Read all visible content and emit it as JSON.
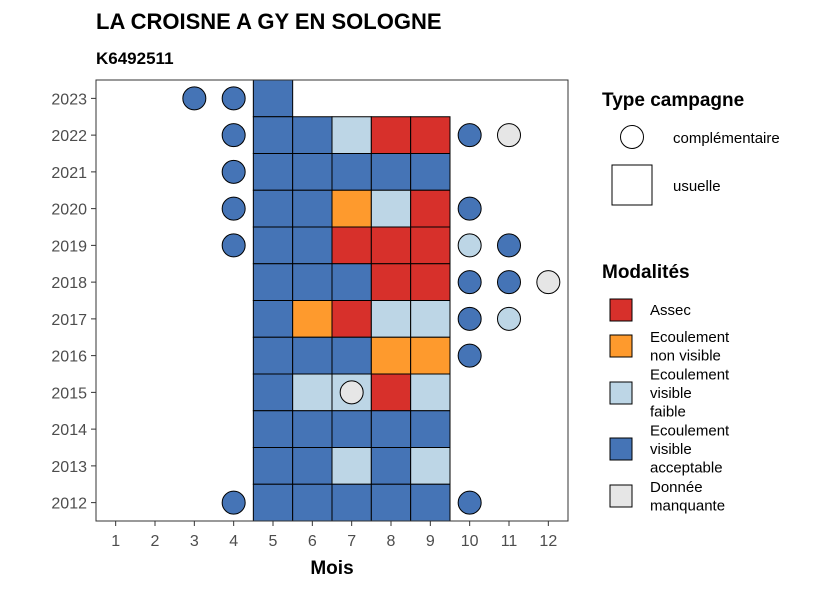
{
  "chart_data": {
    "type": "heatmap",
    "title": "LA CROISNE A GY EN SOLOGNE",
    "subtitle": "K6492511",
    "xlabel": "Mois",
    "ylabel": "",
    "x_ticks": [
      "1",
      "2",
      "3",
      "4",
      "5",
      "6",
      "7",
      "8",
      "9",
      "10",
      "11",
      "12"
    ],
    "y_ticks": [
      "2012",
      "2013",
      "2014",
      "2015",
      "2016",
      "2017",
      "2018",
      "2019",
      "2020",
      "2021",
      "2022",
      "2023"
    ],
    "xlim": [
      0.5,
      12.5
    ],
    "ylim": [
      2011.5,
      2023.5
    ],
    "grid": false,
    "colors": {
      "Assec": "#d7302b",
      "Ecoulement non visible": "#fe9a2d",
      "Ecoulement visible faible": "#bdd6e6",
      "Ecoulement visible acceptable": "#4574b6",
      "Donnée manquante": "#e6e6e6"
    },
    "usuelle": [
      {
        "year": 2023,
        "month": 5,
        "modalite": "Ecoulement visible acceptable"
      },
      {
        "year": 2022,
        "month": 5,
        "modalite": "Ecoulement visible acceptable"
      },
      {
        "year": 2022,
        "month": 6,
        "modalite": "Ecoulement visible acceptable"
      },
      {
        "year": 2022,
        "month": 7,
        "modalite": "Ecoulement visible faible"
      },
      {
        "year": 2022,
        "month": 8,
        "modalite": "Assec"
      },
      {
        "year": 2022,
        "month": 9,
        "modalite": "Assec"
      },
      {
        "year": 2021,
        "month": 5,
        "modalite": "Ecoulement visible acceptable"
      },
      {
        "year": 2021,
        "month": 6,
        "modalite": "Ecoulement visible acceptable"
      },
      {
        "year": 2021,
        "month": 7,
        "modalite": "Ecoulement visible acceptable"
      },
      {
        "year": 2021,
        "month": 8,
        "modalite": "Ecoulement visible acceptable"
      },
      {
        "year": 2021,
        "month": 9,
        "modalite": "Ecoulement visible acceptable"
      },
      {
        "year": 2020,
        "month": 5,
        "modalite": "Ecoulement visible acceptable"
      },
      {
        "year": 2020,
        "month": 6,
        "modalite": "Ecoulement visible acceptable"
      },
      {
        "year": 2020,
        "month": 7,
        "modalite": "Ecoulement non visible"
      },
      {
        "year": 2020,
        "month": 8,
        "modalite": "Ecoulement visible faible"
      },
      {
        "year": 2020,
        "month": 9,
        "modalite": "Assec"
      },
      {
        "year": 2019,
        "month": 5,
        "modalite": "Ecoulement visible acceptable"
      },
      {
        "year": 2019,
        "month": 6,
        "modalite": "Ecoulement visible acceptable"
      },
      {
        "year": 2019,
        "month": 7,
        "modalite": "Assec"
      },
      {
        "year": 2019,
        "month": 8,
        "modalite": "Assec"
      },
      {
        "year": 2019,
        "month": 9,
        "modalite": "Assec"
      },
      {
        "year": 2018,
        "month": 5,
        "modalite": "Ecoulement visible acceptable"
      },
      {
        "year": 2018,
        "month": 6,
        "modalite": "Ecoulement visible acceptable"
      },
      {
        "year": 2018,
        "month": 7,
        "modalite": "Ecoulement visible acceptable"
      },
      {
        "year": 2018,
        "month": 8,
        "modalite": "Assec"
      },
      {
        "year": 2018,
        "month": 9,
        "modalite": "Assec"
      },
      {
        "year": 2017,
        "month": 5,
        "modalite": "Ecoulement visible acceptable"
      },
      {
        "year": 2017,
        "month": 6,
        "modalite": "Ecoulement non visible"
      },
      {
        "year": 2017,
        "month": 7,
        "modalite": "Assec"
      },
      {
        "year": 2017,
        "month": 8,
        "modalite": "Ecoulement visible faible"
      },
      {
        "year": 2017,
        "month": 9,
        "modalite": "Ecoulement visible faible"
      },
      {
        "year": 2016,
        "month": 5,
        "modalite": "Ecoulement visible acceptable"
      },
      {
        "year": 2016,
        "month": 6,
        "modalite": "Ecoulement visible acceptable"
      },
      {
        "year": 2016,
        "month": 7,
        "modalite": "Ecoulement visible acceptable"
      },
      {
        "year": 2016,
        "month": 8,
        "modalite": "Ecoulement non visible"
      },
      {
        "year": 2016,
        "month": 9,
        "modalite": "Ecoulement non visible"
      },
      {
        "year": 2015,
        "month": 5,
        "modalite": "Ecoulement visible acceptable"
      },
      {
        "year": 2015,
        "month": 6,
        "modalite": "Ecoulement visible faible"
      },
      {
        "year": 2015,
        "month": 7,
        "modalite": "Ecoulement visible faible"
      },
      {
        "year": 2015,
        "month": 8,
        "modalite": "Assec"
      },
      {
        "year": 2015,
        "month": 9,
        "modalite": "Ecoulement visible faible"
      },
      {
        "year": 2014,
        "month": 5,
        "modalite": "Ecoulement visible acceptable"
      },
      {
        "year": 2014,
        "month": 6,
        "modalite": "Ecoulement visible acceptable"
      },
      {
        "year": 2014,
        "month": 7,
        "modalite": "Ecoulement visible acceptable"
      },
      {
        "year": 2014,
        "month": 8,
        "modalite": "Ecoulement visible acceptable"
      },
      {
        "year": 2014,
        "month": 9,
        "modalite": "Ecoulement visible acceptable"
      },
      {
        "year": 2013,
        "month": 5,
        "modalite": "Ecoulement visible acceptable"
      },
      {
        "year": 2013,
        "month": 6,
        "modalite": "Ecoulement visible acceptable"
      },
      {
        "year": 2013,
        "month": 7,
        "modalite": "Ecoulement visible faible"
      },
      {
        "year": 2013,
        "month": 8,
        "modalite": "Ecoulement visible acceptable"
      },
      {
        "year": 2013,
        "month": 9,
        "modalite": "Ecoulement visible faible"
      },
      {
        "year": 2012,
        "month": 5,
        "modalite": "Ecoulement visible acceptable"
      },
      {
        "year": 2012,
        "month": 6,
        "modalite": "Ecoulement visible acceptable"
      },
      {
        "year": 2012,
        "month": 7,
        "modalite": "Ecoulement visible acceptable"
      },
      {
        "year": 2012,
        "month": 8,
        "modalite": "Ecoulement visible acceptable"
      },
      {
        "year": 2012,
        "month": 9,
        "modalite": "Ecoulement visible acceptable"
      }
    ],
    "complementaire": [
      {
        "year": 2023,
        "month": 3,
        "modalite": "Ecoulement visible acceptable"
      },
      {
        "year": 2023,
        "month": 4,
        "modalite": "Ecoulement visible acceptable"
      },
      {
        "year": 2022,
        "month": 4,
        "modalite": "Ecoulement visible acceptable"
      },
      {
        "year": 2022,
        "month": 10,
        "modalite": "Ecoulement visible acceptable"
      },
      {
        "year": 2022,
        "month": 11,
        "modalite": "Donnée manquante"
      },
      {
        "year": 2021,
        "month": 4,
        "modalite": "Ecoulement visible acceptable"
      },
      {
        "year": 2020,
        "month": 4,
        "modalite": "Ecoulement visible acceptable"
      },
      {
        "year": 2020,
        "month": 10,
        "modalite": "Ecoulement visible acceptable"
      },
      {
        "year": 2019,
        "month": 4,
        "modalite": "Ecoulement visible acceptable"
      },
      {
        "year": 2019,
        "month": 10,
        "modalite": "Ecoulement visible faible"
      },
      {
        "year": 2019,
        "month": 11,
        "modalite": "Ecoulement visible acceptable"
      },
      {
        "year": 2018,
        "month": 10,
        "modalite": "Ecoulement visible acceptable"
      },
      {
        "year": 2018,
        "month": 11,
        "modalite": "Ecoulement visible acceptable"
      },
      {
        "year": 2018,
        "month": 12,
        "modalite": "Donnée manquante"
      },
      {
        "year": 2017,
        "month": 10,
        "modalite": "Ecoulement visible acceptable"
      },
      {
        "year": 2017,
        "month": 11,
        "modalite": "Ecoulement visible faible"
      },
      {
        "year": 2016,
        "month": 10,
        "modalite": "Ecoulement visible acceptable"
      },
      {
        "year": 2015,
        "month": 7,
        "modalite": "Donnée manquante"
      },
      {
        "year": 2012,
        "month": 4,
        "modalite": "Ecoulement visible acceptable"
      },
      {
        "year": 2012,
        "month": 10,
        "modalite": "Ecoulement visible acceptable"
      }
    ],
    "legend": {
      "placement": "right",
      "type_title": "Type campagne",
      "type_entries": [
        {
          "shape": "circle",
          "label": "complémentaire"
        },
        {
          "shape": "square",
          "label": "usuelle"
        }
      ],
      "modalites_title": "Modalités",
      "modalites_entries": [
        {
          "modalite": "Assec",
          "lines": [
            "Assec"
          ]
        },
        {
          "modalite": "Ecoulement non visible",
          "lines": [
            "Ecoulement",
            "non visible"
          ]
        },
        {
          "modalite": "Ecoulement visible faible",
          "lines": [
            "Ecoulement",
            "visible",
            "faible"
          ]
        },
        {
          "modalite": "Ecoulement visible acceptable",
          "lines": [
            "Ecoulement",
            "visible",
            "acceptable"
          ]
        },
        {
          "modalite": "Donnée manquante",
          "lines": [
            "Donnée",
            "manquante"
          ]
        }
      ]
    }
  }
}
